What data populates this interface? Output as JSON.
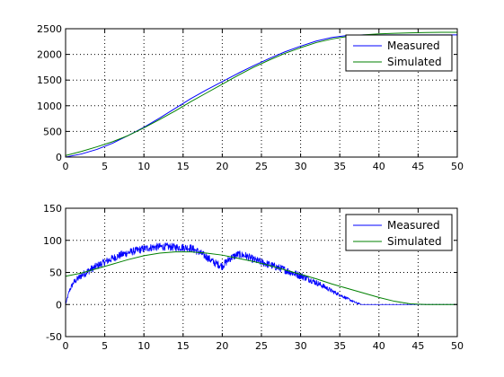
{
  "chart_data": [
    {
      "type": "line",
      "xlim": [
        0,
        50
      ],
      "ylim": [
        0,
        2500
      ],
      "xticks": [
        "0",
        "5",
        "10",
        "15",
        "20",
        "25",
        "30",
        "35",
        "40",
        "45",
        "50"
      ],
      "yticks": [
        "0",
        "500",
        "1000",
        "1500",
        "2000",
        "2500"
      ],
      "xtick_values": [
        0,
        5,
        10,
        15,
        20,
        25,
        30,
        35,
        40,
        45,
        50
      ],
      "ytick_values": [
        0,
        500,
        1000,
        1500,
        2000,
        2500
      ],
      "grid": true,
      "legend_position": "top-right",
      "series": [
        {
          "name": "Measured",
          "color": "#0000ff",
          "x": [
            0,
            2,
            4,
            6,
            8,
            10,
            12,
            14,
            16,
            18,
            20,
            22,
            24,
            26,
            28,
            30,
            32,
            34,
            36,
            38,
            40,
            42,
            44,
            46,
            48,
            50
          ],
          "y": [
            0,
            60,
            150,
            270,
            420,
            580,
            760,
            950,
            1140,
            1310,
            1470,
            1630,
            1780,
            1920,
            2050,
            2160,
            2260,
            2330,
            2370,
            2380,
            2380,
            2380,
            2380,
            2380,
            2380,
            2380
          ]
        },
        {
          "name": "Simulated",
          "color": "#008000",
          "x": [
            0,
            2,
            4,
            6,
            8,
            10,
            12,
            14,
            16,
            18,
            20,
            22,
            24,
            26,
            28,
            30,
            32,
            34,
            36,
            38,
            40,
            42,
            44,
            46,
            48,
            50
          ],
          "y": [
            30,
            110,
            200,
            300,
            420,
            570,
            730,
            900,
            1080,
            1250,
            1420,
            1590,
            1750,
            1890,
            2020,
            2130,
            2230,
            2300,
            2350,
            2380,
            2400,
            2410,
            2420,
            2425,
            2430,
            2430
          ]
        }
      ]
    },
    {
      "type": "line",
      "xlim": [
        0,
        50
      ],
      "ylim": [
        -50,
        150
      ],
      "xticks": [
        "0",
        "5",
        "10",
        "15",
        "20",
        "25",
        "30",
        "35",
        "40",
        "45",
        "50"
      ],
      "yticks": [
        "-50",
        "0",
        "50",
        "100",
        "150"
      ],
      "xtick_values": [
        0,
        5,
        10,
        15,
        20,
        25,
        30,
        35,
        40,
        45,
        50
      ],
      "ytick_values": [
        -50,
        0,
        50,
        100,
        150
      ],
      "grid": true,
      "legend_position": "top-right",
      "series": [
        {
          "name": "Measured",
          "color": "#0000ff",
          "noisy": true,
          "noise_amplitude": 12,
          "x": [
            0,
            0.5,
            1,
            2,
            3,
            4,
            5,
            6,
            7,
            8,
            9,
            10,
            11,
            12,
            13,
            14,
            15,
            16,
            17,
            18,
            19,
            20,
            21,
            22,
            23,
            24,
            25,
            26,
            27,
            28,
            29,
            30,
            31,
            32,
            33,
            34,
            35,
            36,
            37,
            37.8,
            38,
            40,
            42,
            44,
            46,
            48,
            50
          ],
          "y": [
            0,
            22,
            34,
            45,
            53,
            60,
            66,
            72,
            77,
            81,
            84,
            87,
            89,
            90,
            90,
            89,
            89,
            88,
            82,
            74,
            65,
            60,
            72,
            78,
            76,
            70,
            66,
            62,
            58,
            54,
            49,
            45,
            40,
            34,
            28,
            21,
            15,
            9,
            3,
            0,
            0,
            0,
            0,
            0,
            0,
            0,
            0
          ]
        },
        {
          "name": "Simulated",
          "color": "#008000",
          "noisy": false,
          "x": [
            0,
            2,
            4,
            6,
            8,
            10,
            12,
            14,
            16,
            18,
            20,
            22,
            24,
            26,
            28,
            30,
            32,
            34,
            36,
            38,
            40,
            42,
            44,
            46,
            48,
            50
          ],
          "y": [
            44,
            49,
            56,
            63,
            70,
            76,
            80,
            82,
            82,
            80,
            77,
            72,
            67,
            61,
            54,
            47,
            40,
            32,
            25,
            18,
            11,
            5,
            1,
            0,
            0,
            0
          ]
        }
      ]
    }
  ]
}
